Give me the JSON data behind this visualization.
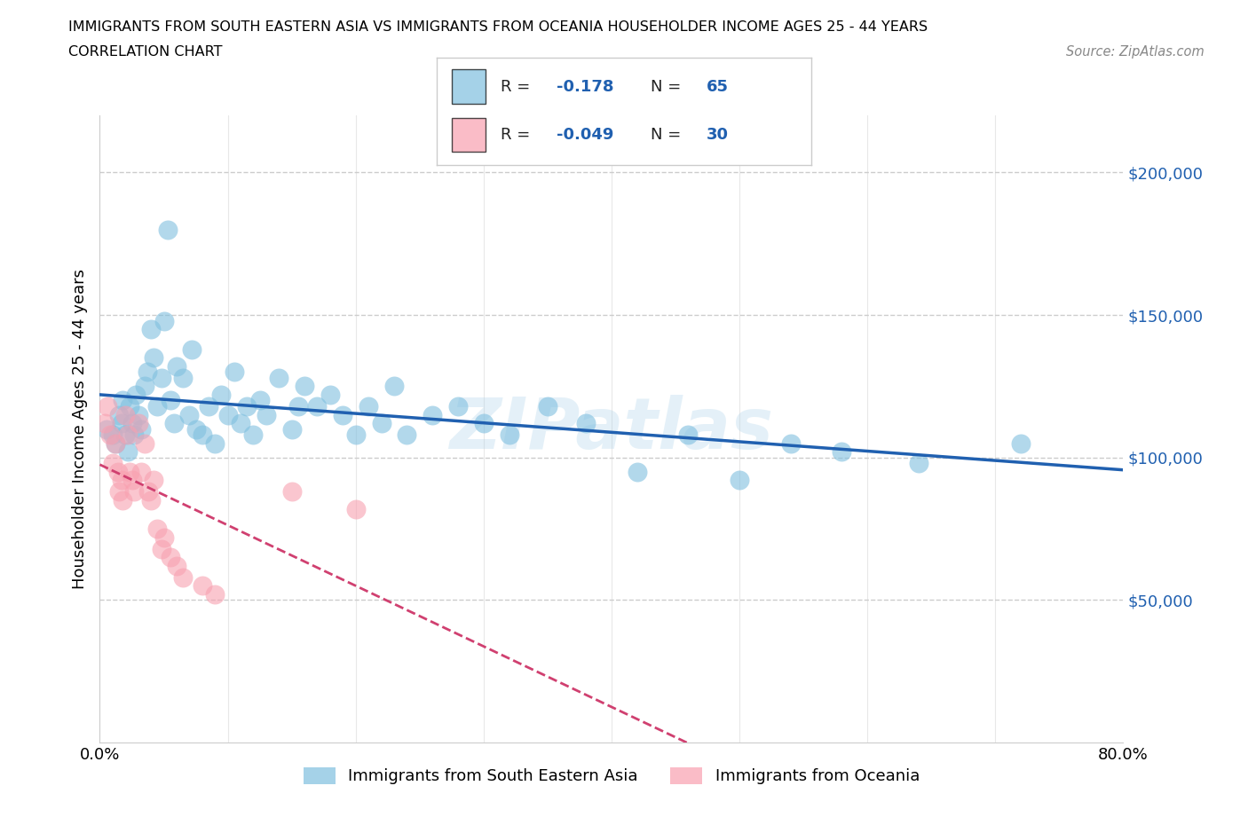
{
  "title_line1": "IMMIGRANTS FROM SOUTH EASTERN ASIA VS IMMIGRANTS FROM OCEANIA HOUSEHOLDER INCOME AGES 25 - 44 YEARS",
  "title_line2": "CORRELATION CHART",
  "source_text": "Source: ZipAtlas.com",
  "ylabel": "Householder Income Ages 25 - 44 years",
  "xmin": 0.0,
  "xmax": 0.8,
  "ymin": 0,
  "ymax": 220000,
  "r_blue": -0.178,
  "n_blue": 65,
  "r_pink": -0.049,
  "n_pink": 30,
  "blue_color": "#7fbfdf",
  "pink_color": "#f8a0b0",
  "blue_line_color": "#2060b0",
  "pink_line_color": "#d04070",
  "watermark": "ZIPatlas",
  "legend_label_blue": "Immigrants from South Eastern Asia",
  "legend_label_pink": "Immigrants from Oceania",
  "blue_x": [
    0.005,
    0.01,
    0.012,
    0.015,
    0.017,
    0.018,
    0.02,
    0.022,
    0.023,
    0.025,
    0.027,
    0.028,
    0.03,
    0.032,
    0.035,
    0.037,
    0.04,
    0.042,
    0.045,
    0.048,
    0.05,
    0.053,
    0.055,
    0.058,
    0.06,
    0.065,
    0.07,
    0.072,
    0.075,
    0.08,
    0.085,
    0.09,
    0.095,
    0.1,
    0.105,
    0.11,
    0.115,
    0.12,
    0.125,
    0.13,
    0.14,
    0.15,
    0.155,
    0.16,
    0.17,
    0.18,
    0.19,
    0.2,
    0.21,
    0.22,
    0.23,
    0.24,
    0.26,
    0.28,
    0.3,
    0.32,
    0.35,
    0.38,
    0.42,
    0.46,
    0.5,
    0.54,
    0.58,
    0.64,
    0.72
  ],
  "blue_y": [
    110000,
    108000,
    105000,
    115000,
    112000,
    120000,
    108000,
    102000,
    118000,
    112000,
    108000,
    122000,
    115000,
    110000,
    125000,
    130000,
    145000,
    135000,
    118000,
    128000,
    148000,
    180000,
    120000,
    112000,
    132000,
    128000,
    115000,
    138000,
    110000,
    108000,
    118000,
    105000,
    122000,
    115000,
    130000,
    112000,
    118000,
    108000,
    120000,
    115000,
    128000,
    110000,
    118000,
    125000,
    118000,
    122000,
    115000,
    108000,
    118000,
    112000,
    125000,
    108000,
    115000,
    118000,
    112000,
    108000,
    118000,
    112000,
    95000,
    108000,
    92000,
    105000,
    102000,
    98000,
    105000
  ],
  "pink_x": [
    0.004,
    0.006,
    0.008,
    0.01,
    0.012,
    0.014,
    0.015,
    0.017,
    0.018,
    0.02,
    0.022,
    0.023,
    0.025,
    0.027,
    0.03,
    0.032,
    0.035,
    0.038,
    0.04,
    0.042,
    0.045,
    0.048,
    0.05,
    0.055,
    0.06,
    0.065,
    0.08,
    0.09,
    0.15,
    0.2
  ],
  "pink_y": [
    112000,
    118000,
    108000,
    98000,
    105000,
    95000,
    88000,
    92000,
    85000,
    115000,
    108000,
    95000,
    92000,
    88000,
    112000,
    95000,
    105000,
    88000,
    85000,
    92000,
    75000,
    68000,
    72000,
    65000,
    62000,
    58000,
    55000,
    52000,
    88000,
    82000
  ]
}
